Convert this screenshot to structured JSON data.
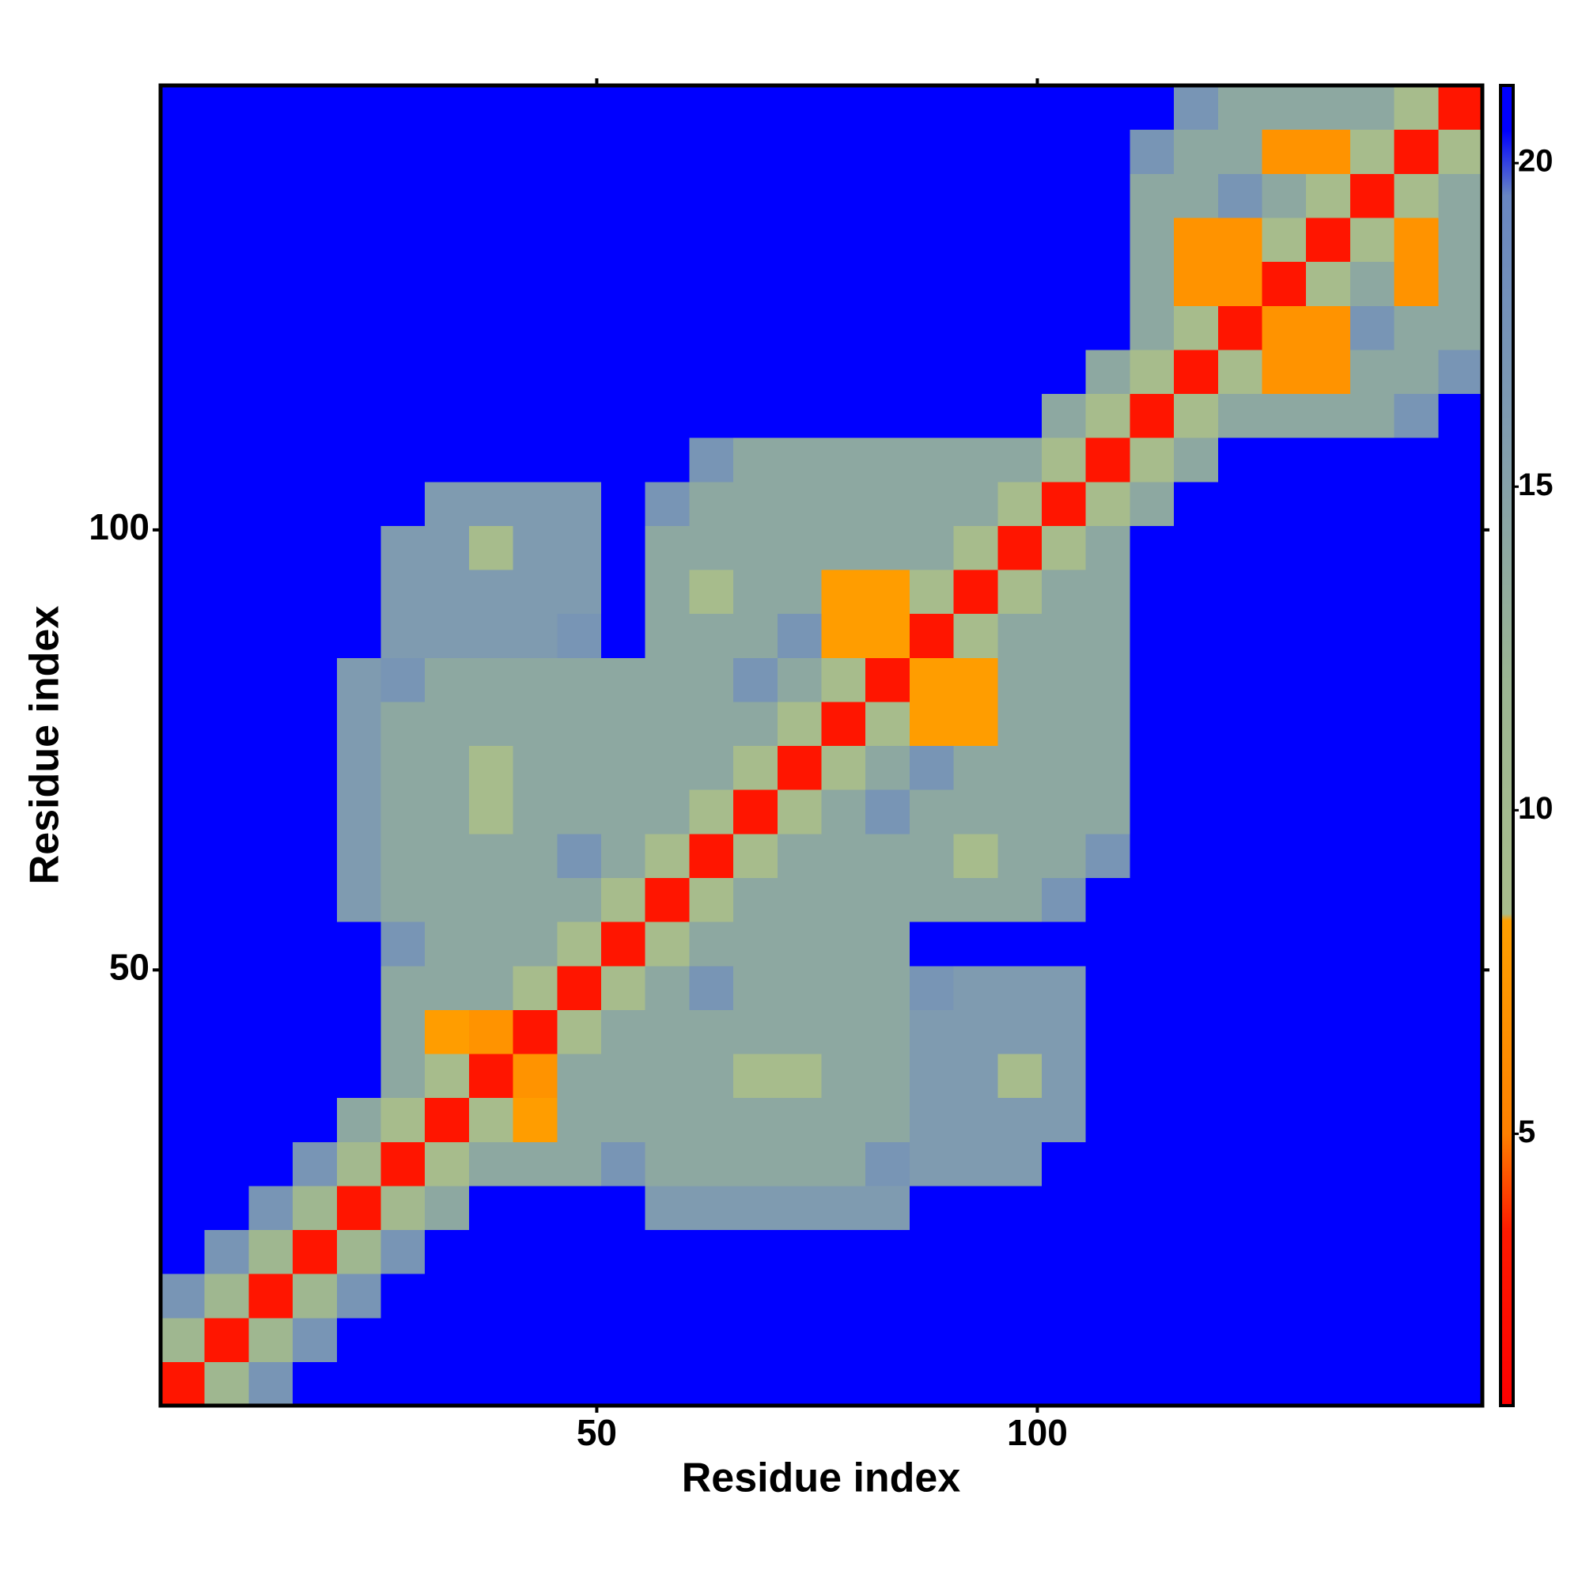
{
  "chart_data": {
    "type": "heatmap",
    "xlabel": "Residue index",
    "ylabel": "Residue index",
    "xlim": [
      0.5,
      150.5
    ],
    "ylim": [
      0.5,
      150.5
    ],
    "xticks": [
      50,
      100
    ],
    "yticks": [
      50,
      100
    ],
    "bins": [
      0.5,
      5.5,
      10.5,
      15.5,
      20.5,
      25.5,
      30.5,
      35.5,
      40.5,
      45.5,
      50.5,
      55.5,
      60.5,
      65.5,
      70.5,
      75.5,
      80.5,
      85.5,
      90.5,
      95.5,
      100.5,
      105.5,
      110.5,
      115.5,
      120.5,
      125.5,
      130.5,
      135.5,
      140.5,
      145.5,
      150.5
    ],
    "clim": [
      0.8,
      21.2
    ],
    "cticks": [
      5,
      10,
      15,
      20
    ],
    "colorscale": [
      {
        "value": 0.8,
        "color": "#ff0000"
      },
      {
        "value": 3.5,
        "color": "#ff1a00"
      },
      {
        "value": 5,
        "color": "#ff8000"
      },
      {
        "value": 8.3,
        "color": "#ffa000"
      },
      {
        "value": 8.4,
        "color": "#a9bd8b"
      },
      {
        "value": 12,
        "color": "#9bb592"
      },
      {
        "value": 16,
        "color": "#7f9bb0"
      },
      {
        "value": 19.5,
        "color": "#6886c2"
      },
      {
        "value": 20.5,
        "color": "#0000ff"
      },
      {
        "value": 21.2,
        "color": "#0000ff"
      }
    ],
    "values": [
      [
        3,
        11,
        17,
        21,
        21,
        21,
        21,
        21,
        21,
        21,
        21,
        21,
        21,
        21,
        21,
        21,
        21,
        21,
        21,
        21,
        21,
        21,
        21,
        21,
        21,
        21,
        21,
        21,
        21,
        21
      ],
      [
        11,
        3,
        11,
        17,
        21,
        21,
        21,
        21,
        21,
        21,
        21,
        21,
        21,
        21,
        21,
        21,
        21,
        21,
        21,
        21,
        21,
        21,
        21,
        21,
        21,
        21,
        21,
        21,
        21,
        21
      ],
      [
        17,
        11,
        3,
        11,
        17,
        21,
        21,
        21,
        21,
        21,
        21,
        21,
        21,
        21,
        21,
        21,
        21,
        21,
        21,
        21,
        21,
        21,
        21,
        21,
        21,
        21,
        21,
        21,
        21,
        21
      ],
      [
        21,
        17,
        11,
        3,
        11,
        17,
        21,
        21,
        21,
        21,
        21,
        21,
        21,
        21,
        21,
        21,
        21,
        21,
        21,
        21,
        21,
        21,
        21,
        21,
        21,
        21,
        21,
        21,
        21,
        21
      ],
      [
        21,
        21,
        17,
        11,
        3,
        10,
        14,
        21,
        21,
        21,
        21,
        16,
        16,
        16,
        16,
        16,
        16,
        21,
        21,
        21,
        21,
        21,
        21,
        21,
        21,
        21,
        21,
        21,
        21,
        21
      ],
      [
        21,
        21,
        21,
        17,
        10,
        3,
        9,
        14,
        14,
        14,
        17,
        14,
        14,
        14,
        14,
        14,
        17,
        16,
        16,
        16,
        21,
        21,
        21,
        21,
        21,
        21,
        21,
        21,
        21,
        21
      ],
      [
        21,
        21,
        21,
        21,
        14,
        9,
        3,
        9,
        8,
        14,
        14,
        14,
        14,
        14,
        14,
        14,
        14,
        16,
        16,
        16,
        16,
        21,
        21,
        21,
        21,
        21,
        21,
        21,
        21,
        21
      ],
      [
        21,
        21,
        21,
        21,
        21,
        14,
        9,
        3,
        7,
        14,
        14,
        14,
        14,
        9,
        9,
        14,
        14,
        16,
        16,
        9,
        16,
        21,
        21,
        21,
        21,
        21,
        21,
        21,
        21,
        21
      ],
      [
        21,
        21,
        21,
        21,
        21,
        14,
        8,
        7,
        3,
        9,
        14,
        14,
        14,
        14,
        14,
        14,
        14,
        16,
        16,
        16,
        16,
        21,
        21,
        21,
        21,
        21,
        21,
        21,
        21,
        21
      ],
      [
        21,
        21,
        21,
        21,
        21,
        14,
        14,
        14,
        9,
        3,
        9,
        14,
        17,
        14,
        14,
        14,
        14,
        17,
        16,
        16,
        16,
        21,
        21,
        21,
        21,
        21,
        21,
        21,
        21,
        21
      ],
      [
        21,
        21,
        21,
        21,
        21,
        17,
        14,
        14,
        14,
        9,
        3,
        9,
        14,
        14,
        14,
        14,
        14,
        21,
        21,
        21,
        21,
        21,
        21,
        21,
        21,
        21,
        21,
        21,
        21,
        21
      ],
      [
        21,
        21,
        21,
        21,
        16,
        14,
        14,
        14,
        14,
        14,
        9,
        3,
        9,
        14,
        14,
        14,
        14,
        14,
        14,
        14,
        17,
        21,
        21,
        21,
        21,
        21,
        21,
        21,
        21,
        21
      ],
      [
        21,
        21,
        21,
        21,
        16,
        14,
        14,
        14,
        14,
        17,
        14,
        9,
        3,
        9,
        14,
        14,
        14,
        14,
        9,
        14,
        14,
        17,
        21,
        21,
        21,
        21,
        21,
        21,
        21,
        21
      ],
      [
        21,
        21,
        21,
        21,
        16,
        14,
        14,
        9,
        14,
        14,
        14,
        14,
        9,
        3,
        9,
        14,
        17,
        14,
        14,
        14,
        14,
        14,
        21,
        21,
        21,
        21,
        21,
        21,
        21,
        21
      ],
      [
        21,
        21,
        21,
        21,
        16,
        14,
        14,
        9,
        14,
        14,
        14,
        14,
        14,
        9,
        3,
        9,
        14,
        17,
        14,
        14,
        14,
        14,
        21,
        21,
        21,
        21,
        21,
        21,
        21,
        21
      ],
      [
        21,
        21,
        21,
        21,
        16,
        14,
        14,
        14,
        14,
        14,
        14,
        14,
        14,
        14,
        9,
        3,
        9,
        8,
        8,
        14,
        14,
        14,
        21,
        21,
        21,
        21,
        21,
        21,
        21,
        21
      ],
      [
        21,
        21,
        21,
        21,
        16,
        17,
        14,
        14,
        14,
        14,
        14,
        14,
        14,
        17,
        14,
        9,
        3,
        8,
        8,
        14,
        14,
        14,
        21,
        21,
        21,
        21,
        21,
        21,
        21,
        21
      ],
      [
        21,
        21,
        21,
        21,
        21,
        16,
        16,
        16,
        16,
        17,
        21,
        14,
        14,
        14,
        17,
        8,
        8,
        3,
        9,
        14,
        14,
        14,
        21,
        21,
        21,
        21,
        21,
        21,
        21,
        21
      ],
      [
        21,
        21,
        21,
        21,
        21,
        16,
        16,
        16,
        16,
        16,
        21,
        14,
        9,
        14,
        14,
        8,
        8,
        9,
        3,
        9,
        14,
        14,
        21,
        21,
        21,
        21,
        21,
        21,
        21,
        21
      ],
      [
        21,
        21,
        21,
        21,
        21,
        16,
        16,
        9,
        16,
        16,
        21,
        14,
        14,
        14,
        14,
        14,
        14,
        14,
        9,
        3,
        9,
        14,
        21,
        21,
        21,
        21,
        21,
        21,
        21,
        21
      ],
      [
        21,
        21,
        21,
        21,
        21,
        21,
        16,
        16,
        16,
        16,
        21,
        17,
        14,
        14,
        14,
        14,
        14,
        14,
        14,
        9,
        3,
        9,
        14,
        21,
        21,
        21,
        21,
        21,
        21,
        21
      ],
      [
        21,
        21,
        21,
        21,
        21,
        21,
        21,
        21,
        21,
        21,
        21,
        21,
        17,
        14,
        14,
        14,
        14,
        14,
        14,
        14,
        9,
        3,
        9,
        14,
        21,
        21,
        21,
        21,
        21,
        21
      ],
      [
        21,
        21,
        21,
        21,
        21,
        21,
        21,
        21,
        21,
        21,
        21,
        21,
        21,
        21,
        21,
        21,
        21,
        21,
        21,
        21,
        14,
        9,
        3,
        9,
        14,
        14,
        14,
        14,
        17,
        21
      ],
      [
        21,
        21,
        21,
        21,
        21,
        21,
        21,
        21,
        21,
        21,
        21,
        21,
        21,
        21,
        21,
        21,
        21,
        21,
        21,
        21,
        21,
        14,
        9,
        3,
        9,
        7,
        7,
        14,
        14,
        17
      ],
      [
        21,
        21,
        21,
        21,
        21,
        21,
        21,
        21,
        21,
        21,
        21,
        21,
        21,
        21,
        21,
        21,
        21,
        21,
        21,
        21,
        21,
        21,
        14,
        9,
        3,
        7,
        7,
        17,
        14,
        14
      ],
      [
        21,
        21,
        21,
        21,
        21,
        21,
        21,
        21,
        21,
        21,
        21,
        21,
        21,
        21,
        21,
        21,
        21,
        21,
        21,
        21,
        21,
        21,
        14,
        7,
        7,
        3,
        9,
        14,
        7,
        14
      ],
      [
        21,
        21,
        21,
        21,
        21,
        21,
        21,
        21,
        21,
        21,
        21,
        21,
        21,
        21,
        21,
        21,
        21,
        21,
        21,
        21,
        21,
        21,
        14,
        7,
        7,
        9,
        3,
        9,
        7,
        14
      ],
      [
        21,
        21,
        21,
        21,
        21,
        21,
        21,
        21,
        21,
        21,
        21,
        21,
        21,
        21,
        21,
        21,
        21,
        21,
        21,
        21,
        21,
        21,
        14,
        14,
        17,
        14,
        9,
        3,
        9,
        14
      ],
      [
        21,
        21,
        21,
        21,
        21,
        21,
        21,
        21,
        21,
        21,
        21,
        21,
        21,
        21,
        21,
        21,
        21,
        21,
        21,
        21,
        21,
        21,
        17,
        14,
        14,
        7,
        7,
        9,
        3,
        9
      ],
      [
        21,
        21,
        21,
        21,
        21,
        21,
        21,
        21,
        21,
        21,
        21,
        21,
        21,
        21,
        21,
        21,
        21,
        21,
        21,
        21,
        21,
        21,
        21,
        17,
        14,
        14,
        14,
        14,
        9,
        3
      ]
    ]
  }
}
